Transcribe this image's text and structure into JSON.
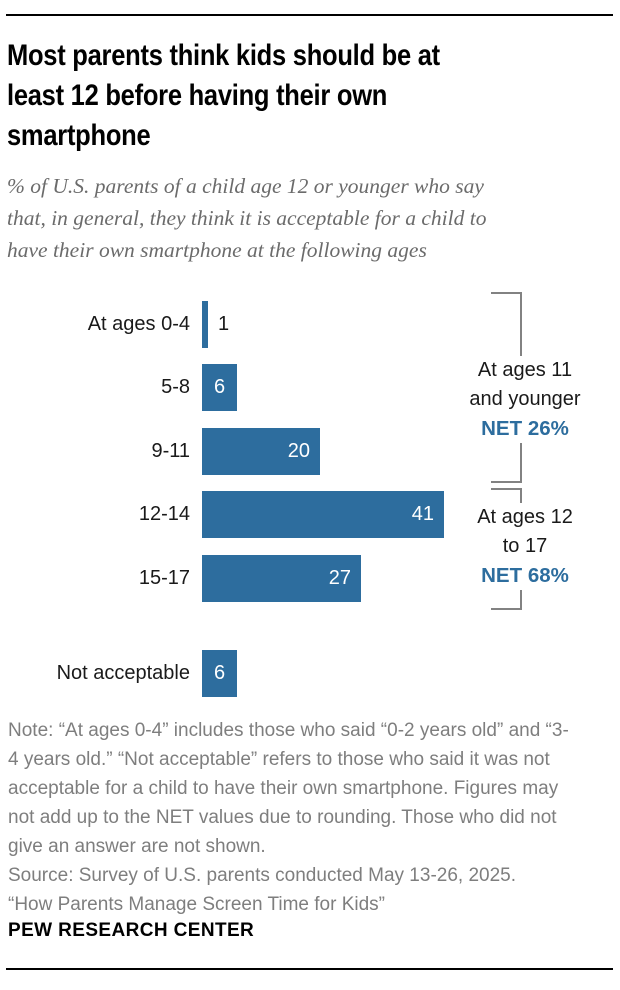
{
  "header": {
    "title_lines": [
      "Most parents think kids should be at",
      "least 12 before having their own",
      "smartphone"
    ],
    "subtitle_lines": [
      "% of U.S. parents of a child age 12 or younger who say",
      "that, in general, they think it is acceptable for a child to",
      "have their own smartphone at the following ages"
    ]
  },
  "chart_data": {
    "type": "bar",
    "orientation": "horizontal",
    "title": "Most parents think kids should be at least 12 before having their own smartphone",
    "subtitle": "% of U.S. parents of a child age 12 or younger who say that, in general, they think it is acceptable for a child to have their own smartphone at the following ages",
    "categories": [
      "At ages 0-4",
      "5-8",
      "9-11",
      "12-14",
      "15-17",
      "Not acceptable"
    ],
    "values": [
      1,
      6,
      20,
      41,
      27,
      6
    ],
    "unit": "%",
    "xlim": [
      0,
      45
    ],
    "bar_color": "#2D6D9E",
    "value_label_positions": [
      "outside",
      "inside-center",
      "inside-right",
      "inside-right",
      "inside-right",
      "inside-center"
    ],
    "net_annotations": [
      {
        "label_lines": [
          "At ages 11",
          "and younger"
        ],
        "net": "NET 26%"
      },
      {
        "label_lines": [
          "At ages 12",
          "to 17"
        ],
        "net": "NET 68%"
      }
    ]
  },
  "footnote": {
    "note_lines": [
      "Note: “At ages 0-4” includes those who said “0-2 years old” and “3-",
      "4 years old.” “Not acceptable” refers to those who said it was not",
      "acceptable for a child to have their own smartphone. Figures may",
      "not add up to the NET values due to rounding. Those who did not",
      "give an answer are not shown."
    ],
    "source_line": "Source: Survey of U.S. parents conducted May 13-26, 2025.",
    "report_line": "“How Parents Manage Screen Time for Kids”"
  },
  "footer": {
    "brand": "PEW RESEARCH CENTER"
  },
  "colors": {
    "accent_blue": "#2D6D9E",
    "text_dark": "#1a1a1a",
    "text_gray": "#7E7E7E",
    "subtitle_gray": "#6B6B6B",
    "bracket_gray": "#828282"
  }
}
